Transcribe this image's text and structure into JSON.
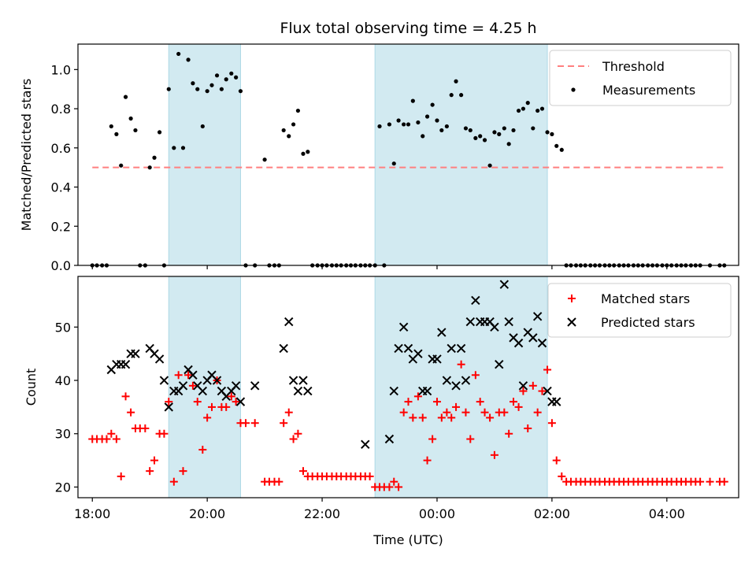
{
  "title": "Flux total observing time = 4.25 h",
  "colors": {
    "threshold": "#ff7f7f",
    "measurement": "#000000",
    "matched": "#ff0000",
    "predicted": "#000000",
    "shade": "#add8e6"
  },
  "chart_data": [
    {
      "type": "scatter",
      "ylabel": "Matched/Predicted stars",
      "xlabel": "",
      "xlim": [
        17.75,
        5.25
      ],
      "ylim": [
        0.0,
        1.13
      ],
      "y_ticks": [
        0.0,
        0.2,
        0.4,
        0.6,
        0.8,
        1.0
      ],
      "y_tick_labels": [
        "0.0",
        "0.2",
        "0.4",
        "0.6",
        "0.8",
        "1.0"
      ],
      "shaded_spans": [
        [
          19.33,
          20.58
        ],
        [
          22.92,
          1.92
        ]
      ],
      "legend_position": "upper right",
      "series": [
        {
          "name": "Threshold",
          "style": "dashed-line",
          "x": [
            18.0,
            5.0
          ],
          "y": [
            0.5,
            0.5
          ]
        },
        {
          "name": "Measurements",
          "style": "dots",
          "x": [
            18.0,
            18.08,
            18.17,
            18.25,
            18.33,
            18.42,
            18.5,
            18.58,
            18.67,
            18.75,
            18.83,
            18.92,
            19.0,
            19.08,
            19.17,
            19.25,
            19.33,
            19.42,
            19.5,
            19.58,
            19.67,
            19.75,
            19.83,
            19.92,
            20.0,
            20.08,
            20.17,
            20.25,
            20.33,
            20.42,
            20.5,
            20.58,
            20.67,
            20.83,
            21.0,
            21.08,
            21.17,
            21.25,
            21.33,
            21.42,
            21.5,
            21.58,
            21.67,
            21.75,
            21.83,
            21.92,
            22.0,
            22.08,
            22.17,
            22.25,
            22.33,
            22.42,
            22.5,
            22.58,
            22.67,
            22.75,
            22.83,
            22.92,
            23.0,
            23.08,
            23.17,
            23.25,
            23.33,
            23.42,
            23.5,
            23.58,
            23.67,
            23.75,
            23.83,
            23.92,
            0.0,
            0.08,
            0.17,
            0.25,
            0.33,
            0.42,
            0.5,
            0.58,
            0.67,
            0.75,
            0.83,
            0.92,
            1.0,
            1.08,
            1.17,
            1.25,
            1.33,
            1.42,
            1.5,
            1.58,
            1.67,
            1.75,
            1.83,
            1.92,
            2.0,
            2.08,
            2.17,
            2.25,
            2.33,
            2.42,
            2.5,
            2.58,
            2.67,
            2.75,
            2.83,
            2.92,
            3.0,
            3.08,
            3.17,
            3.25,
            3.33,
            3.42,
            3.5,
            3.58,
            3.67,
            3.75,
            3.83,
            3.92,
            4.0,
            4.08,
            4.17,
            4.25,
            4.33,
            4.42,
            4.5,
            4.58,
            4.75,
            4.92,
            5.0
          ],
          "y": [
            0.0,
            0.0,
            0.0,
            0.0,
            0.71,
            0.67,
            0.51,
            0.86,
            0.75,
            0.69,
            0.0,
            0.0,
            0.5,
            0.55,
            0.68,
            0.0,
            0.9,
            0.6,
            1.08,
            0.6,
            1.05,
            0.93,
            0.9,
            0.71,
            0.89,
            0.92,
            0.97,
            0.9,
            0.95,
            0.98,
            0.96,
            0.89,
            0.0,
            0.0,
            0.54,
            0.0,
            0.0,
            0.0,
            0.69,
            0.66,
            0.72,
            0.79,
            0.57,
            0.58,
            0.0,
            0.0,
            0.0,
            0.0,
            0.0,
            0.0,
            0.0,
            0.0,
            0.0,
            0.0,
            0.0,
            0.0,
            0.0,
            0.0,
            0.71,
            0.0,
            0.72,
            0.52,
            0.74,
            0.72,
            0.72,
            0.84,
            0.73,
            0.66,
            0.76,
            0.82,
            0.74,
            0.69,
            0.71,
            0.87,
            0.94,
            0.87,
            0.7,
            0.69,
            0.65,
            0.66,
            0.64,
            0.51,
            0.68,
            0.67,
            0.7,
            0.62,
            0.69,
            0.79,
            0.8,
            0.83,
            0.7,
            0.79,
            0.8,
            0.68,
            0.67,
            0.61,
            0.59,
            0.0,
            0.0,
            0.0,
            0.0,
            0.0,
            0.0,
            0.0,
            0.0,
            0.0,
            0.0,
            0.0,
            0.0,
            0.0,
            0.0,
            0.0,
            0.0,
            0.0,
            0.0,
            0.0,
            0.0,
            0.0,
            0.0,
            0.0,
            0.0,
            0.0,
            0.0,
            0.0,
            0.0,
            0.0,
            0.0,
            0.0,
            0.0
          ]
        }
      ]
    },
    {
      "type": "scatter",
      "ylabel": "Count",
      "xlabel": "Time (UTC)",
      "xlim": [
        17.75,
        5.25
      ],
      "ylim": [
        18.0,
        59.5
      ],
      "y_ticks": [
        20,
        30,
        40,
        50
      ],
      "y_tick_labels": [
        "20",
        "30",
        "40",
        "50"
      ],
      "x_ticks": [
        18.0,
        20.0,
        22.0,
        0.0,
        2.0,
        4.0
      ],
      "x_tick_labels": [
        "18:00",
        "20:00",
        "22:00",
        "00:00",
        "02:00",
        "04:00"
      ],
      "shaded_spans": [
        [
          19.33,
          20.58
        ],
        [
          22.92,
          1.92
        ]
      ],
      "legend_position": "upper right",
      "series": [
        {
          "name": "Matched stars",
          "marker": "plus",
          "x": [
            18.0,
            18.08,
            18.17,
            18.25,
            18.33,
            18.42,
            18.5,
            18.58,
            18.67,
            18.75,
            18.83,
            18.92,
            19.0,
            19.08,
            19.17,
            19.25,
            19.33,
            19.42,
            19.5,
            19.58,
            19.67,
            19.75,
            19.83,
            19.92,
            20.0,
            20.08,
            20.17,
            20.25,
            20.33,
            20.42,
            20.5,
            20.58,
            20.67,
            20.83,
            21.0,
            21.08,
            21.17,
            21.25,
            21.33,
            21.42,
            21.5,
            21.58,
            21.67,
            21.75,
            21.83,
            21.92,
            22.0,
            22.08,
            22.17,
            22.25,
            22.33,
            22.42,
            22.5,
            22.58,
            22.67,
            22.75,
            22.83,
            22.92,
            23.0,
            23.08,
            23.17,
            23.25,
            23.33,
            23.42,
            23.5,
            23.58,
            23.67,
            23.75,
            23.83,
            23.92,
            0.0,
            0.08,
            0.17,
            0.25,
            0.33,
            0.42,
            0.5,
            0.58,
            0.67,
            0.75,
            0.83,
            0.92,
            1.0,
            1.08,
            1.17,
            1.25,
            1.33,
            1.42,
            1.5,
            1.58,
            1.67,
            1.75,
            1.83,
            1.92,
            2.0,
            2.08,
            2.17,
            2.25,
            2.33,
            2.42,
            2.5,
            2.58,
            2.67,
            2.75,
            2.83,
            2.92,
            3.0,
            3.08,
            3.17,
            3.25,
            3.33,
            3.42,
            3.5,
            3.58,
            3.67,
            3.75,
            3.83,
            3.92,
            4.0,
            4.08,
            4.17,
            4.25,
            4.33,
            4.42,
            4.5,
            4.58,
            4.75,
            4.92,
            5.0
          ],
          "y": [
            29,
            29,
            29,
            29,
            30,
            29,
            22,
            37,
            34,
            31,
            31,
            31,
            23,
            25,
            30,
            30,
            36,
            21,
            41,
            23,
            41,
            39,
            36,
            27,
            33,
            35,
            40,
            35,
            35,
            37,
            36,
            32,
            32,
            32,
            21,
            21,
            21,
            21,
            32,
            34,
            29,
            30,
            23,
            22,
            22,
            22,
            22,
            22,
            22,
            22,
            22,
            22,
            22,
            22,
            22,
            22,
            22,
            20,
            20,
            20,
            20,
            21,
            20,
            34,
            36,
            33,
            37,
            33,
            25,
            29,
            36,
            33,
            34,
            33,
            35,
            43,
            34,
            29,
            41,
            36,
            34,
            33,
            26,
            34,
            34,
            30,
            36,
            35,
            38,
            31,
            39,
            34,
            38,
            42,
            32,
            25,
            22,
            21,
            21,
            21,
            21,
            21,
            21,
            21,
            21,
            21,
            21,
            21,
            21,
            21,
            21,
            21,
            21,
            21,
            21,
            21,
            21,
            21,
            21,
            21,
            21,
            21,
            21,
            21,
            21,
            21,
            21,
            21,
            21
          ]
        },
        {
          "name": "Predicted stars",
          "marker": "x",
          "x": [
            18.33,
            18.42,
            18.5,
            18.58,
            18.67,
            18.75,
            19.0,
            19.08,
            19.17,
            19.25,
            19.33,
            19.42,
            19.5,
            19.58,
            19.67,
            19.75,
            19.83,
            19.92,
            20.0,
            20.08,
            20.17,
            20.25,
            20.33,
            20.42,
            20.5,
            20.58,
            20.83,
            21.33,
            21.42,
            21.5,
            21.58,
            21.67,
            21.75,
            22.75,
            23.17,
            23.25,
            23.33,
            23.42,
            23.5,
            23.58,
            23.67,
            23.75,
            23.83,
            23.92,
            0.0,
            0.08,
            0.17,
            0.25,
            0.33,
            0.42,
            0.5,
            0.58,
            0.67,
            0.75,
            0.83,
            0.92,
            1.0,
            1.08,
            1.17,
            1.25,
            1.33,
            1.42,
            1.5,
            1.58,
            1.67,
            1.75,
            1.83,
            1.92,
            2.0,
            2.08
          ],
          "y": [
            42,
            43,
            43,
            43,
            45,
            45,
            46,
            45,
            44,
            40,
            35,
            38,
            38,
            39,
            42,
            41,
            39,
            38,
            40,
            41,
            40,
            38,
            37,
            38,
            39,
            36,
            39,
            46,
            51,
            40,
            38,
            40,
            38,
            28,
            29,
            38,
            46,
            50,
            46,
            44,
            45,
            38,
            38,
            44,
            44,
            49,
            40,
            46,
            39,
            46,
            40,
            51,
            55,
            51,
            51,
            51,
            50,
            43,
            58,
            51,
            48,
            47,
            39,
            49,
            48,
            52,
            47,
            38,
            36,
            36
          ]
        }
      ]
    }
  ]
}
